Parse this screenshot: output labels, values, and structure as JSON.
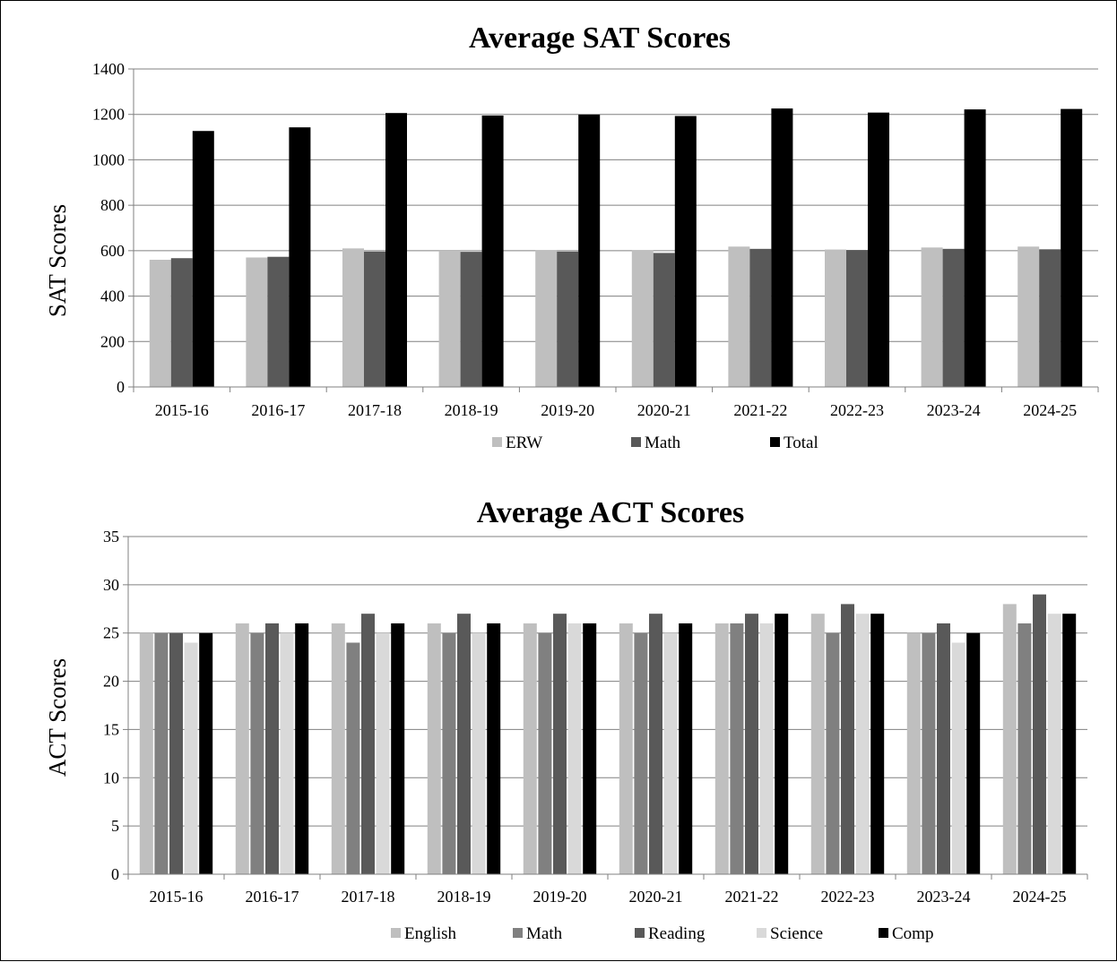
{
  "chart_data": [
    {
      "type": "bar",
      "title": "Average SAT Scores",
      "xlabel": "",
      "ylabel": "SAT Scores",
      "ylim": [
        0,
        1400
      ],
      "yticks": [
        0,
        200,
        400,
        600,
        800,
        1000,
        1200,
        1400
      ],
      "grid": true,
      "legend_position": "bottom",
      "categories": [
        "2015-16",
        "2016-17",
        "2017-18",
        "2018-19",
        "2019-20",
        "2020-21",
        "2021-22",
        "2022-23",
        "2023-24",
        "2024-25"
      ],
      "series": [
        {
          "name": "ERW",
          "color": "#bfbfbf",
          "values": [
            560,
            570,
            610,
            600,
            603,
            603,
            618,
            605,
            614,
            618
          ]
        },
        {
          "name": "Math",
          "color": "#595959",
          "values": [
            567,
            573,
            596,
            595,
            596,
            590,
            608,
            603,
            608,
            606
          ]
        },
        {
          "name": "Total",
          "color": "#000000",
          "values": [
            1127,
            1143,
            1206,
            1195,
            1199,
            1193,
            1226,
            1208,
            1222,
            1224
          ]
        }
      ]
    },
    {
      "type": "bar",
      "title": "Average ACT Scores",
      "xlabel": "",
      "ylabel": "ACT Scores",
      "ylim": [
        0,
        35
      ],
      "yticks": [
        0,
        5,
        10,
        15,
        20,
        25,
        30,
        35
      ],
      "grid": true,
      "legend_position": "bottom",
      "categories": [
        "2015-16",
        "2016-17",
        "2017-18",
        "2018-19",
        "2019-20",
        "2020-21",
        "2021-22",
        "2022-23",
        "2023-24",
        "2024-25"
      ],
      "series": [
        {
          "name": "English",
          "color": "#bfbfbf",
          "values": [
            25,
            26,
            26,
            26,
            26,
            26,
            26,
            27,
            25,
            28
          ]
        },
        {
          "name": "Math",
          "color": "#808080",
          "values": [
            25,
            25,
            24,
            25,
            25,
            25,
            26,
            25,
            25,
            26
          ]
        },
        {
          "name": "Reading",
          "color": "#595959",
          "values": [
            25,
            26,
            27,
            27,
            27,
            27,
            27,
            28,
            26,
            29
          ]
        },
        {
          "name": "Science",
          "color": "#d9d9d9",
          "values": [
            24,
            25,
            25,
            25,
            26,
            25,
            26,
            27,
            24,
            27
          ]
        },
        {
          "name": "Comp",
          "color": "#000000",
          "values": [
            25,
            26,
            26,
            26,
            26,
            26,
            27,
            27,
            25,
            27
          ]
        }
      ]
    }
  ]
}
